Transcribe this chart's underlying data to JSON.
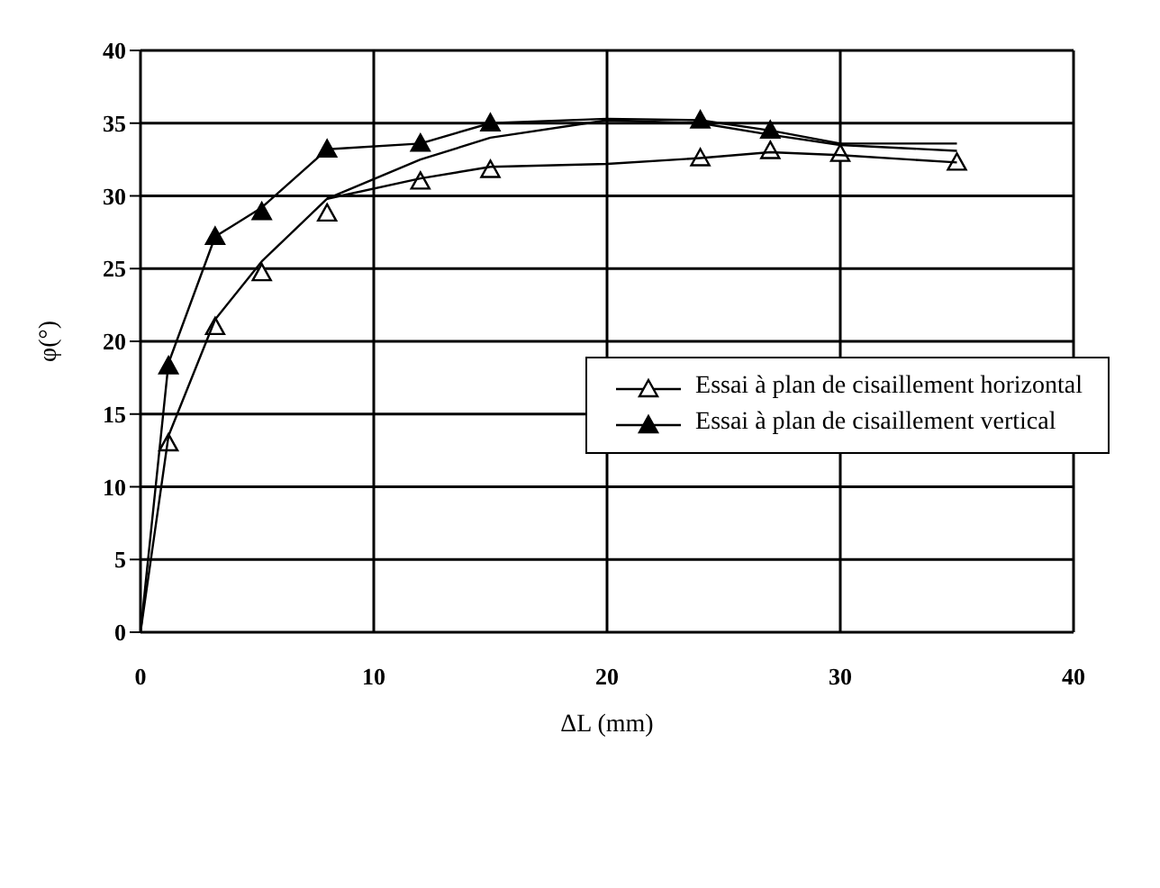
{
  "chart_data": {
    "type": "scatter",
    "xlabel": "ΔL (mm)",
    "ylabel": "φ(°)",
    "xlim": [
      0,
      40
    ],
    "ylim": [
      0,
      40
    ],
    "xticks": [
      0,
      10,
      20,
      30,
      40
    ],
    "yticks": [
      0,
      5,
      10,
      15,
      20,
      25,
      30,
      35,
      40
    ],
    "grid": true,
    "legend": "right",
    "series": [
      {
        "name": "Essai à plan de cisaillement horizontal",
        "color": "#000000",
        "marker": "triangle",
        "x": [
          1.2,
          3.2,
          5.2,
          8,
          12,
          15,
          24,
          27,
          30,
          35
        ],
        "values": [
          13,
          21,
          24.7,
          28.8,
          31,
          31.8,
          32.6,
          33.1,
          32.9,
          32.3
        ]
      },
      {
        "name": "Essai à plan de cisaillement vertical",
        "color": "#000000",
        "marker": "triangle",
        "x": [
          1.2,
          3.2,
          5.2,
          8,
          12,
          15,
          24,
          27
        ],
        "values": [
          18.3,
          27.2,
          28.9,
          33.2,
          33.6,
          35,
          35.2,
          34.5
        ]
      },
      {
        "type": "line",
        "color": "#000000",
        "marker": "none",
        "x": [
          0,
          1.2,
          3.2,
          5.2,
          8,
          12,
          15,
          20,
          24,
          27,
          30,
          35
        ],
        "values": [
          0,
          13.5,
          21.5,
          25.5,
          29.8,
          31.2,
          32,
          32.2,
          32.6,
          33,
          32.8,
          32.3
        ]
      },
      {
        "type": "line",
        "color": "#000000",
        "marker": "none",
        "x": [
          0,
          1.2,
          3.2,
          5.2,
          8,
          12,
          15,
          20,
          24,
          27,
          30,
          35
        ],
        "values": [
          0,
          18.5,
          27.2,
          29.2,
          33.2,
          33.6,
          35,
          35.3,
          35.2,
          34.5,
          33.6,
          33.6
        ]
      },
      {
        "type": "line",
        "color": "#000000",
        "marker": "none",
        "x": [
          8,
          12,
          15,
          20,
          24,
          27,
          30,
          35
        ],
        "values": [
          29.8,
          32.5,
          34,
          35.2,
          35,
          34.2,
          33.5,
          33.1
        ]
      }
    ]
  }
}
